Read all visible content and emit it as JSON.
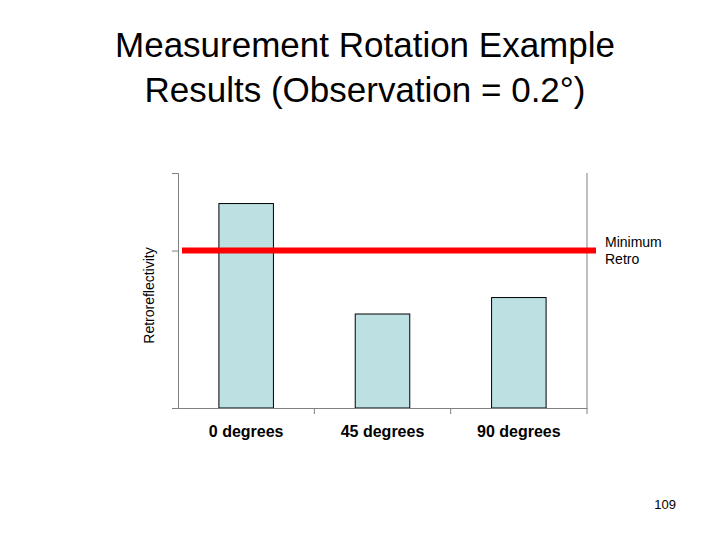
{
  "chart_data": {
    "type": "bar",
    "title": [
      "Measurement Rotation Example",
      "Results (Observation = 0.2°)"
    ],
    "y_label": "Retroreflectivity",
    "categories": [
      "0 degrees",
      "45 degrees",
      "90 degrees"
    ],
    "values": [
      87,
      40,
      47
    ],
    "color": "#bde0e3",
    "ylim": [
      0,
      100
    ],
    "yticks": [
      0,
      67
    ],
    "tick_labels": "x",
    "grid": false,
    "reference_line": {
      "value": 67,
      "label": "Minimum Retro",
      "color": "#ff0000"
    },
    "page_number": "109"
  }
}
